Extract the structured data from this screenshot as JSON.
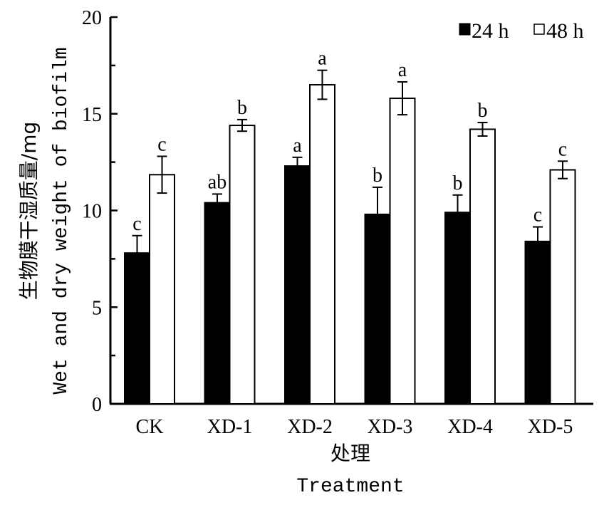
{
  "chart_data": {
    "type": "bar",
    "title": "",
    "xlabel_cn": "处理",
    "xlabel": "Treatment",
    "ylabel_cn": "生物膜干湿质量/mg",
    "ylabel": "Wet and dry weight of biofilm",
    "ylim": [
      0,
      20
    ],
    "yticks": [
      0,
      5,
      10,
      15,
      20
    ],
    "yminor_step": 2.5,
    "grid": false,
    "legend_position": "top-right",
    "categories": [
      "CK",
      "XD-1",
      "XD-2",
      "XD-3",
      "XD-4",
      "XD-5"
    ],
    "series": [
      {
        "name": "24 h",
        "fill": "#000000",
        "values": [
          7.8,
          10.4,
          12.3,
          9.8,
          9.9,
          8.4
        ],
        "errors": [
          0.9,
          0.45,
          0.45,
          1.4,
          0.9,
          0.75
        ],
        "significance": [
          "c",
          "ab",
          "a",
          "b",
          "b",
          "c"
        ]
      },
      {
        "name": "48 h",
        "fill": "#ffffff",
        "values": [
          11.85,
          14.4,
          16.5,
          15.8,
          14.2,
          12.1
        ],
        "errors": [
          0.95,
          0.3,
          0.75,
          0.85,
          0.35,
          0.45
        ],
        "significance": [
          "c",
          "b",
          "a",
          "a",
          "b",
          "c"
        ]
      }
    ]
  }
}
